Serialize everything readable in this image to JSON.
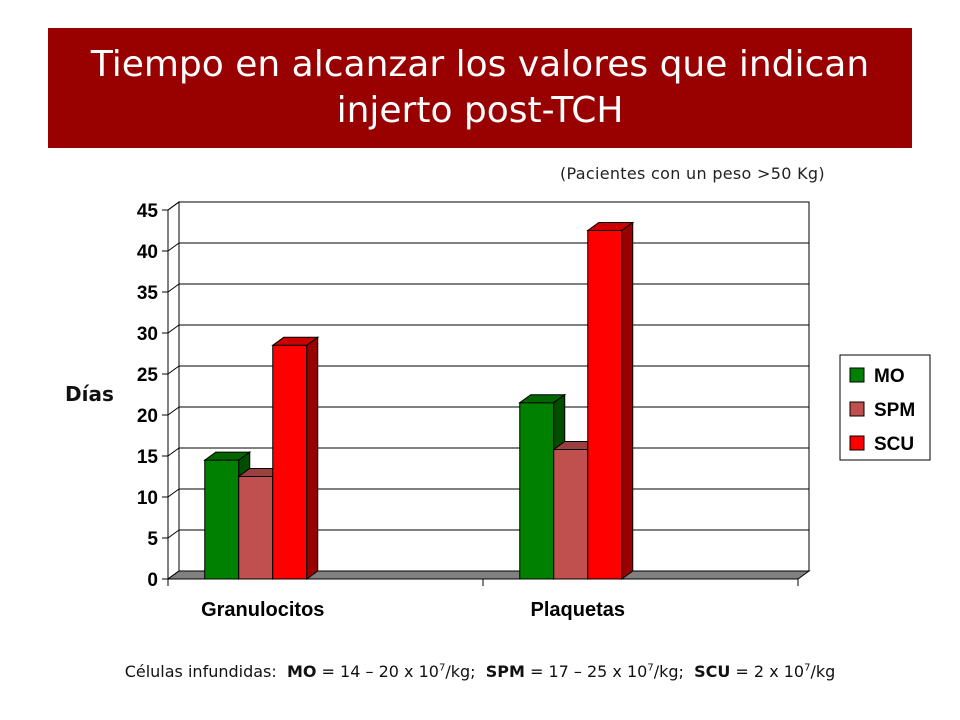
{
  "title": "Tiempo en alcanzar los valores que indican injerto post-TCH",
  "subtitle": "(Pacientes con un peso >50 Kg)",
  "colors": {
    "banner": "#990000",
    "MO": "#008000",
    "SPM": "#c0504d",
    "SCU": "#ff0000"
  },
  "footer": {
    "prefix": "Células infundidas:",
    "mo_label": "MO",
    "mo_text": " = 14 – 20 x 10",
    "mo_exp": "7",
    "mo_unit": "/kg;",
    "spm_label": "SPM",
    "spm_text": " = 17 – 25 x 10",
    "spm_exp": "7",
    "spm_unit": "/kg;",
    "scu_label": "SCU",
    "scu_text": " = 2 x 10",
    "scu_exp": "7",
    "scu_unit": "/kg"
  },
  "chart_data": {
    "type": "bar",
    "ylabel": "Días",
    "xlabel": "",
    "ylim": [
      0,
      45
    ],
    "yticks": [
      0,
      5,
      10,
      15,
      20,
      25,
      30,
      35,
      40,
      45
    ],
    "grid": true,
    "legend_position": "right",
    "categories": [
      "Granulocitos",
      "Plaquetas"
    ],
    "series": [
      {
        "name": "MO",
        "color": "#008000",
        "values": [
          14.5,
          21.5
        ]
      },
      {
        "name": "SPM",
        "color": "#c0504d",
        "values": [
          12.5,
          15.8
        ]
      },
      {
        "name": "SCU",
        "color": "#ff0000",
        "values": [
          28.5,
          42.5
        ]
      }
    ]
  }
}
